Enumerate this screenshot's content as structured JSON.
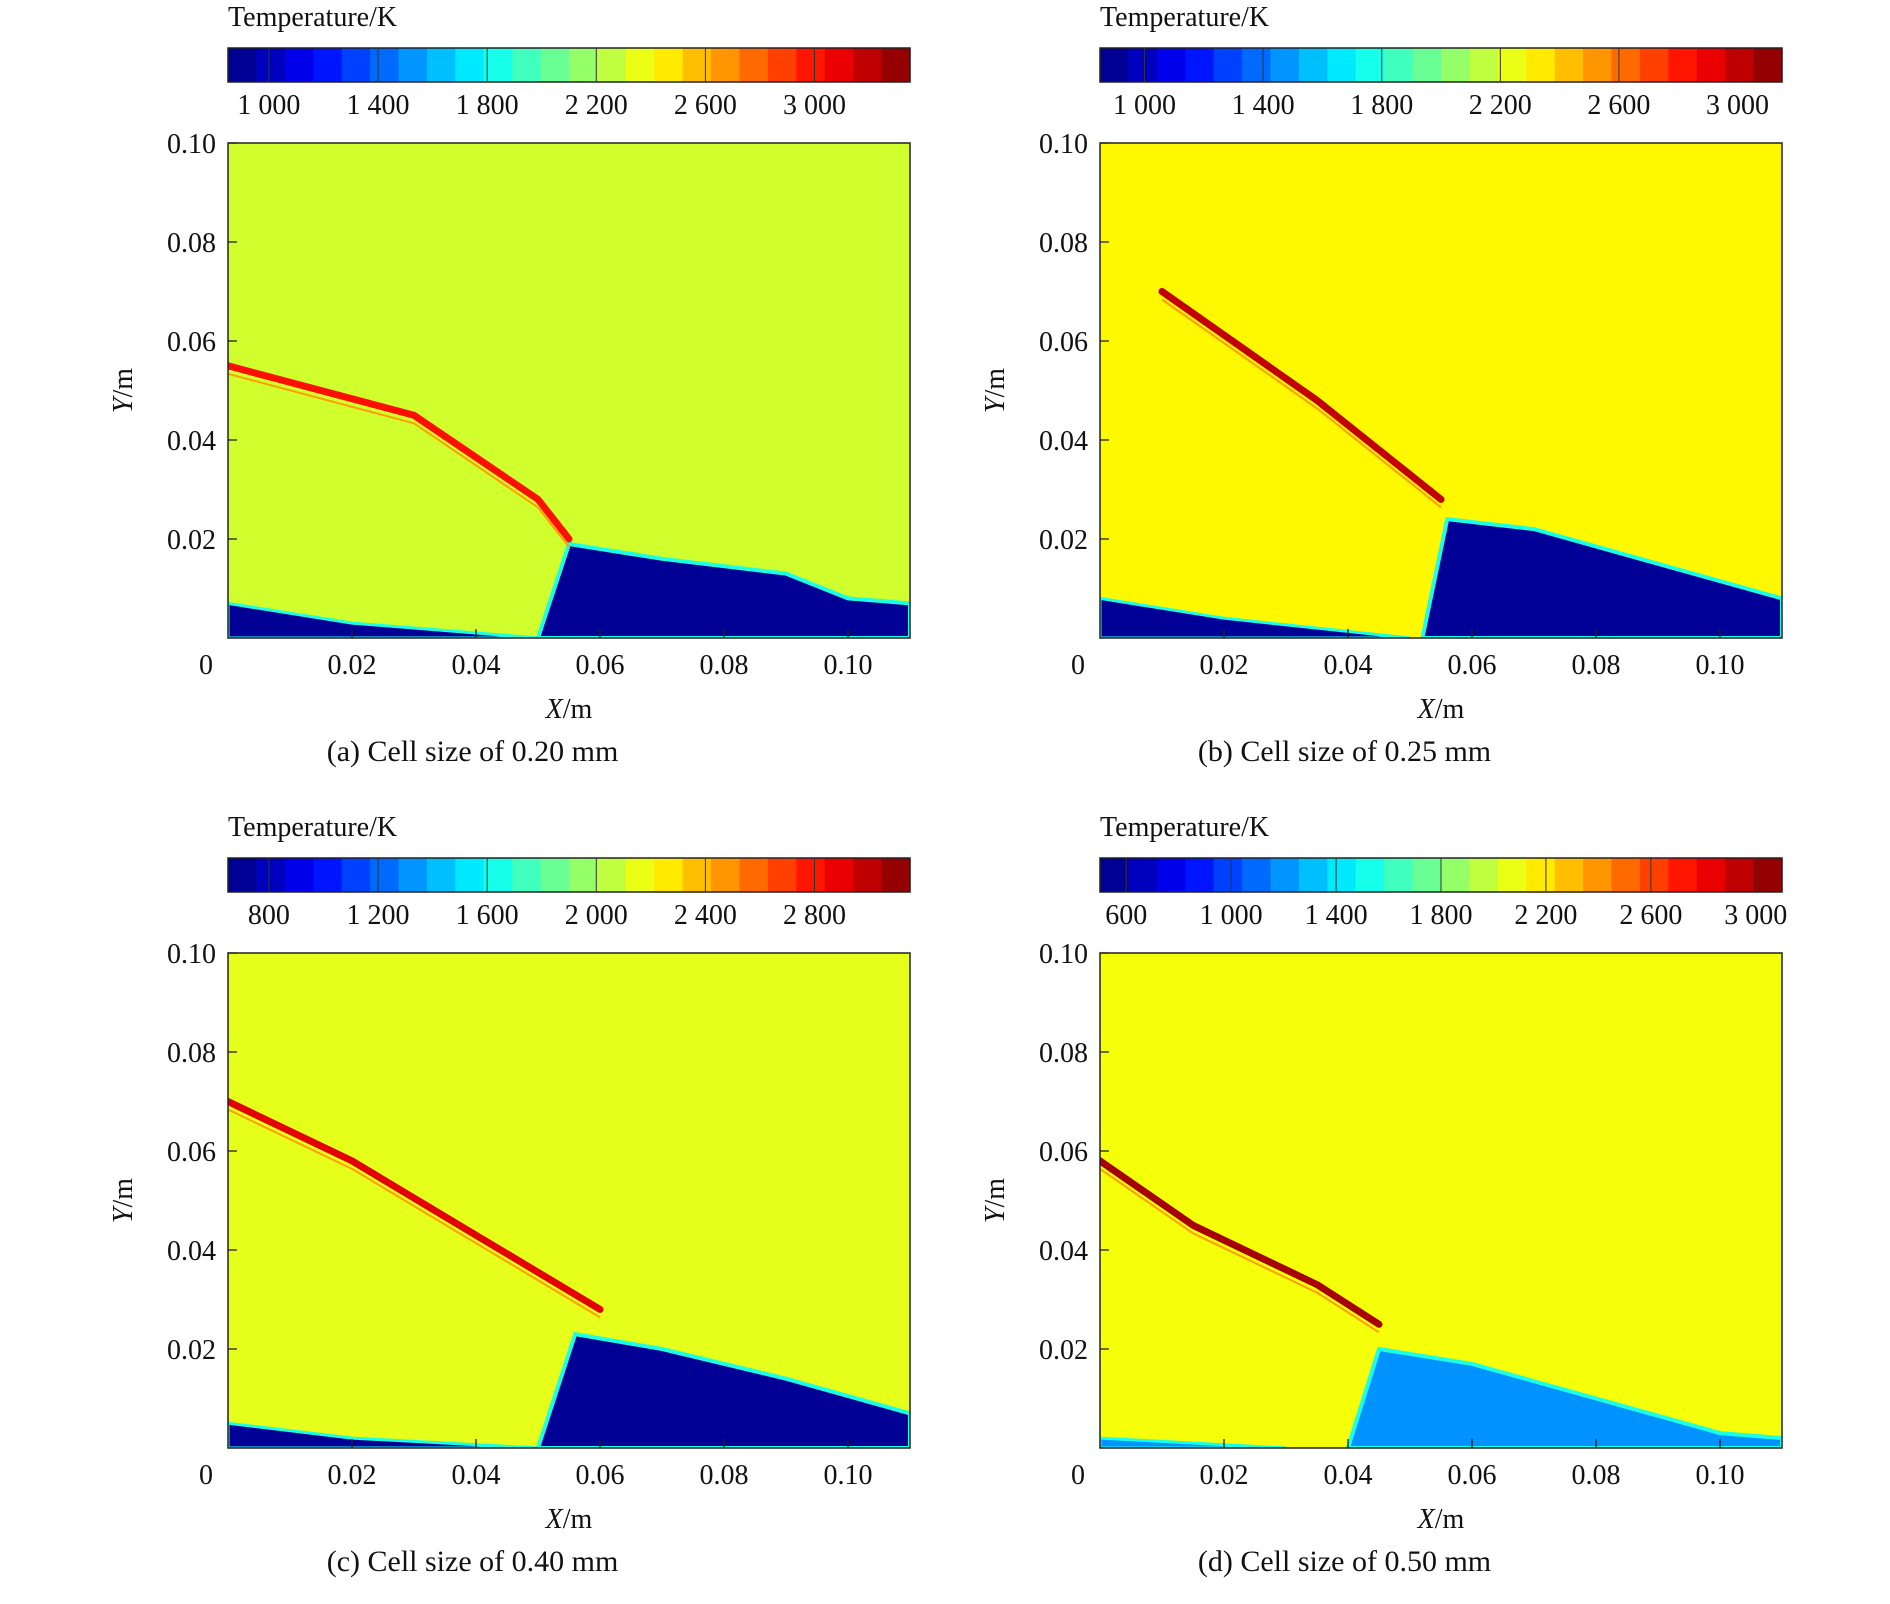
{
  "chart_data": [
    {
      "type": "heatmap",
      "title": "(a) Cell size of 0.20 mm",
      "colorbar": {
        "label": "Temperature/K",
        "min": 850,
        "max": 3350,
        "ticks": [
          1000,
          1400,
          1800,
          2200,
          2600,
          3000
        ],
        "tick_labels": [
          "1 000",
          "1 400",
          "1 800",
          "2 200",
          "2 600",
          "3 000"
        ]
      },
      "xlabel": "X/m",
      "ylabel": "Y/m",
      "xlim": [
        0,
        0.11
      ],
      "ylim": [
        0,
        0.1
      ],
      "xticks": [
        "0",
        "0.02",
        "0.04",
        "0.06",
        "0.08",
        "0.10"
      ],
      "yticks": [
        "0.02",
        "0.04",
        "0.06",
        "0.08",
        "0.10"
      ],
      "background_temperature": 2300,
      "cold_region_temperature": 900,
      "cold_region_boundary": [
        [
          0.05,
          0
        ],
        [
          0.055,
          0.019
        ],
        [
          0.07,
          0.016
        ],
        [
          0.09,
          0.013
        ],
        [
          0.1,
          0.008
        ],
        [
          0.11,
          0.007
        ],
        [
          0.11,
          0
        ]
      ],
      "cold_layer_boundary": [
        [
          0,
          0.007
        ],
        [
          0.02,
          0.003
        ],
        [
          0.05,
          0
        ],
        [
          0,
          0
        ]
      ],
      "front_line": [
        [
          0,
          0.055
        ],
        [
          0.03,
          0.045
        ],
        [
          0.05,
          0.028
        ],
        [
          0.055,
          0.02
        ]
      ],
      "front_temperature": 3000
    },
    {
      "type": "heatmap",
      "title": "(b) Cell size of 0.25 mm",
      "colorbar": {
        "label": "Temperature/K",
        "min": 850,
        "max": 3150,
        "ticks": [
          1000,
          1400,
          1800,
          2200,
          2600,
          3000
        ],
        "tick_labels": [
          "1 000",
          "1 400",
          "1 800",
          "2 200",
          "2 600",
          "3 000"
        ]
      },
      "xlabel": "X/m",
      "ylabel": "Y/m",
      "xlim": [
        0,
        0.11
      ],
      "ylim": [
        0,
        0.1
      ],
      "xticks": [
        "0",
        "0.02",
        "0.04",
        "0.06",
        "0.08",
        "0.10"
      ],
      "yticks": [
        "0.02",
        "0.04",
        "0.06",
        "0.08",
        "0.10"
      ],
      "background_temperature": 2300,
      "cold_region_temperature": 900,
      "cold_region_boundary": [
        [
          0.052,
          0
        ],
        [
          0.056,
          0.024
        ],
        [
          0.07,
          0.022
        ],
        [
          0.09,
          0.015
        ],
        [
          0.11,
          0.008
        ],
        [
          0.11,
          0
        ]
      ],
      "cold_layer_boundary": [
        [
          0,
          0.008
        ],
        [
          0.02,
          0.004
        ],
        [
          0.05,
          0
        ],
        [
          0,
          0
        ]
      ],
      "front_line": [
        [
          0.01,
          0.07
        ],
        [
          0.035,
          0.048
        ],
        [
          0.055,
          0.028
        ]
      ],
      "front_temperature": 3000
    },
    {
      "type": "heatmap",
      "title": "(c) Cell size of 0.40 mm",
      "colorbar": {
        "label": "Temperature/K",
        "min": 650,
        "max": 3150,
        "ticks": [
          800,
          1200,
          1600,
          2000,
          2400,
          2800
        ],
        "tick_labels": [
          "800",
          "1 200",
          "1 600",
          "2 000",
          "2 400",
          "2 800"
        ]
      },
      "xlabel": "X/m",
      "ylabel": "Y/m",
      "xlim": [
        0,
        0.11
      ],
      "ylim": [
        0,
        0.1
      ],
      "xticks": [
        "0",
        "0.02",
        "0.04",
        "0.06",
        "0.08",
        "0.10"
      ],
      "yticks": [
        "0.02",
        "0.04",
        "0.06",
        "0.08",
        "0.10"
      ],
      "background_temperature": 2150,
      "cold_region_temperature": 700,
      "cold_region_boundary": [
        [
          0.05,
          0
        ],
        [
          0.056,
          0.023
        ],
        [
          0.07,
          0.02
        ],
        [
          0.09,
          0.014
        ],
        [
          0.11,
          0.007
        ],
        [
          0.11,
          0
        ]
      ],
      "cold_layer_boundary": [
        [
          0,
          0.005
        ],
        [
          0.02,
          0.002
        ],
        [
          0.05,
          0
        ],
        [
          0,
          0
        ]
      ],
      "front_line": [
        [
          0,
          0.07
        ],
        [
          0.02,
          0.058
        ],
        [
          0.04,
          0.043
        ],
        [
          0.06,
          0.028
        ]
      ],
      "front_temperature": 2900
    },
    {
      "type": "heatmap",
      "title": "(d) Cell size of 0.50 mm",
      "colorbar": {
        "label": "Temperature/K",
        "min": 500,
        "max": 3100,
        "ticks": [
          600,
          1000,
          1400,
          1800,
          2200,
          2600,
          3000
        ],
        "tick_labels": [
          "600",
          "1 000",
          "1 400",
          "1 800",
          "2 200",
          "2 600",
          "3 000"
        ]
      },
      "xlabel": "X/m",
      "ylabel": "Y/m",
      "xlim": [
        0,
        0.11
      ],
      "ylim": [
        0,
        0.1
      ],
      "xticks": [
        "0",
        "0.02",
        "0.04",
        "0.06",
        "0.08",
        "0.10"
      ],
      "yticks": [
        "0.02",
        "0.04",
        "0.06",
        "0.08",
        "0.10"
      ],
      "background_temperature": 2100,
      "cold_region_temperature": 1200,
      "cold_region_boundary": [
        [
          0.04,
          0
        ],
        [
          0.045,
          0.02
        ],
        [
          0.06,
          0.017
        ],
        [
          0.08,
          0.01
        ],
        [
          0.1,
          0.003
        ],
        [
          0.11,
          0.002
        ],
        [
          0.11,
          0
        ]
      ],
      "cold_layer_boundary": [
        [
          0,
          0.002
        ],
        [
          0.03,
          0
        ],
        [
          0,
          0
        ]
      ],
      "front_line": [
        [
          0,
          0.058
        ],
        [
          0.015,
          0.045
        ],
        [
          0.035,
          0.033
        ],
        [
          0.045,
          0.025
        ]
      ],
      "front_temperature": 3000
    }
  ]
}
